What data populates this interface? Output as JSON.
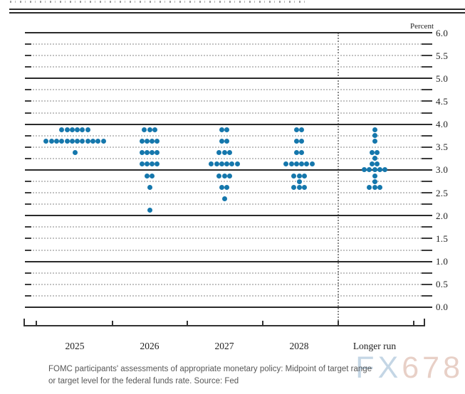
{
  "y_axis_unit_label": "Percent",
  "caption": {
    "line1": "FOMC participants' assessments of appropriate monetary policy: Midpoint of target range",
    "line2": "or target level for the federal funds rate. Source: Fed"
  },
  "watermark": {
    "fx": "FX",
    "num": "678"
  },
  "chart_data": {
    "type": "scatter",
    "subtype": "fomc-dot-plot",
    "title": "FOMC participants' assessments of appropriate monetary policy",
    "xlabel": "",
    "ylabel": "Percent",
    "ylim": [
      0.0,
      6.0
    ],
    "grid_step": 0.25,
    "label_step": 0.5,
    "grid_on": true,
    "solid_gridlines_at_integers": true,
    "y_tick_labels": [
      "6.0",
      "5.5",
      "5.0",
      "4.5",
      "4.0",
      "3.5",
      "3.0",
      "2.5",
      "2.0",
      "1.5",
      "1.0",
      "0.5",
      "0.0"
    ],
    "categories": [
      "2025",
      "2026",
      "2027",
      "2028",
      "Longer run"
    ],
    "dot_color": "#1577ac",
    "series": [
      {
        "name": "2025",
        "distribution": [
          {
            "rate": 3.875,
            "count": 6
          },
          {
            "rate": 3.625,
            "count": 12
          },
          {
            "rate": 3.375,
            "count": 1
          }
        ]
      },
      {
        "name": "2026",
        "distribution": [
          {
            "rate": 3.875,
            "count": 3
          },
          {
            "rate": 3.625,
            "count": 4
          },
          {
            "rate": 3.375,
            "count": 4
          },
          {
            "rate": 3.125,
            "count": 4
          },
          {
            "rate": 2.875,
            "count": 2
          },
          {
            "rate": 2.625,
            "count": 1
          },
          {
            "rate": 2.125,
            "count": 1
          }
        ]
      },
      {
        "name": "2027",
        "distribution": [
          {
            "rate": 3.875,
            "count": 2
          },
          {
            "rate": 3.625,
            "count": 2
          },
          {
            "rate": 3.375,
            "count": 3
          },
          {
            "rate": 3.125,
            "count": 6
          },
          {
            "rate": 2.875,
            "count": 3
          },
          {
            "rate": 2.625,
            "count": 2
          },
          {
            "rate": 2.375,
            "count": 1
          }
        ]
      },
      {
        "name": "2028",
        "distribution": [
          {
            "rate": 3.875,
            "count": 2
          },
          {
            "rate": 3.625,
            "count": 2
          },
          {
            "rate": 3.375,
            "count": 2
          },
          {
            "rate": 3.125,
            "count": 6
          },
          {
            "rate": 2.875,
            "count": 3
          },
          {
            "rate": 2.75,
            "count": 1
          },
          {
            "rate": 2.625,
            "count": 3
          }
        ]
      },
      {
        "name": "Longer run",
        "distribution": [
          {
            "rate": 3.875,
            "count": 1
          },
          {
            "rate": 3.75,
            "count": 1
          },
          {
            "rate": 3.625,
            "count": 1
          },
          {
            "rate": 3.375,
            "count": 2
          },
          {
            "rate": 3.25,
            "count": 1
          },
          {
            "rate": 3.125,
            "count": 2
          },
          {
            "rate": 3.0,
            "count": 5
          },
          {
            "rate": 2.875,
            "count": 1
          },
          {
            "rate": 2.75,
            "count": 1
          },
          {
            "rate": 2.625,
            "count": 3
          }
        ]
      }
    ]
  }
}
